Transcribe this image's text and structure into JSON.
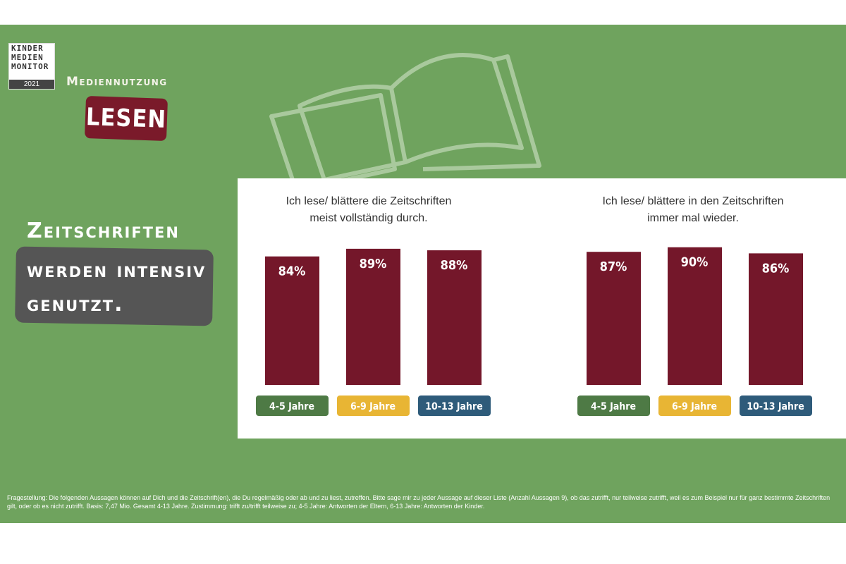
{
  "logo": {
    "lines": [
      "KINDER",
      "MEDIEN",
      "MONITOR"
    ],
    "year": "2021"
  },
  "header": {
    "category": "Mediennutzung",
    "topic": "LESEN"
  },
  "headline": {
    "line1": "Zeitschriften",
    "line2": "werden intensiv",
    "line3": "genutzt."
  },
  "colors": {
    "bar": "#74172a",
    "g1": "#4e7a45",
    "g2": "#e8b534",
    "g3": "#2e5b7a"
  },
  "chart_data": [
    {
      "type": "bar",
      "title": "Ich lese/ blättere die Zeitschriften meist vollständig durch.",
      "title_lines": [
        "Ich lese/ blättere die Zeitschriften",
        "meist vollständig durch."
      ],
      "categories": [
        "4-5 Jahre",
        "6-9 Jahre",
        "10-13 Jahre"
      ],
      "values": [
        84,
        89,
        88
      ],
      "labels": [
        "84%",
        "89%",
        "88%"
      ],
      "ylim": [
        0,
        100
      ]
    },
    {
      "type": "bar",
      "title": "Ich lese/ blättere in den Zeitschriften immer mal wieder.",
      "title_lines": [
        "Ich lese/ blättere in den Zeitschriften",
        "immer mal wieder."
      ],
      "categories": [
        "4-5 Jahre",
        "6-9 Jahre",
        "10-13 Jahre"
      ],
      "values": [
        87,
        90,
        86
      ],
      "labels": [
        "87%",
        "90%",
        "86%"
      ],
      "ylim": [
        0,
        100
      ]
    }
  ],
  "footnote": "Fragestellung: Die folgenden Aussagen können auf Dich und die Zeitschrift(en), die Du regelmäßig oder ab und zu liest, zutreffen. Bitte sage mir zu jeder Aussage auf dieser Liste (Anzahl Aussagen 9), ob das zutrifft, nur teilweise zutrifft, weil es zum Beispiel nur für ganz bestimmte Zeitschriften gilt, oder ob es nicht zutrifft. Basis: 7,47 Mio. Gesamt 4-13 Jahre. Zustimmung: trifft zu/trifft teilweise zu; 4-5 Jahre: Antworten der Eltern, 6-13 Jahre: Antworten der Kinder."
}
